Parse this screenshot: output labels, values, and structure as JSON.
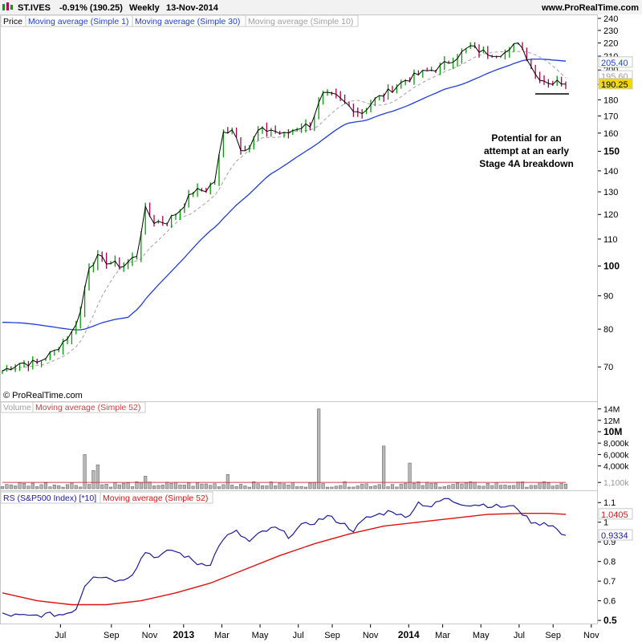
{
  "header": {
    "symbol": "ST.IVES",
    "change": "-0.91% (190.25)",
    "period": "Weekly",
    "date": "13-Nov-2014",
    "site": "www.ProRealTime.com"
  },
  "watermark": "© ProRealTime.com",
  "annotation": [
    "Potential for an",
    "attempt at an early",
    "Stage 4A breakdown"
  ],
  "colors": {
    "up": "#00a000",
    "down": "#b0004a",
    "ma1": "#000000",
    "ma30": "#1f3fd8",
    "ma10": "#a0a0a0",
    "volume_bar": "#b8b8b8",
    "vol_ma": "#d04040",
    "rs": "#1a1a9a",
    "rs_ma": "#e01010",
    "last_price_bg": "#f0d800"
  },
  "chart_data": [
    {
      "type": "line",
      "panel": "price",
      "scale": "log",
      "ylim": [
        62,
        242
      ],
      "yticks": [
        70,
        80,
        90,
        100,
        110,
        120,
        130,
        140,
        150,
        160,
        170,
        180,
        190,
        200,
        210,
        220,
        230,
        240
      ],
      "ytick_bold": [
        100,
        150
      ],
      "legend": [
        "Price",
        "Moving average (Simple 1)",
        "Moving average (Simple 30)",
        "Moving average (Simple 10)"
      ],
      "x_labels": [
        "Jul",
        "Sep",
        "Nov",
        "2013",
        "Mar",
        "May",
        "Jul",
        "Sep",
        "Nov",
        "2014",
        "Mar",
        "May",
        "Jul",
        "Sep",
        "Nov"
      ],
      "x_bold": [
        "2013",
        "2014"
      ],
      "price_knots": [
        [
          0,
          69
        ],
        [
          4,
          71
        ],
        [
          8,
          71
        ],
        [
          12,
          74
        ],
        [
          16,
          79
        ],
        [
          18,
          85
        ],
        [
          20,
          100
        ],
        [
          22,
          103
        ],
        [
          25,
          101
        ],
        [
          28,
          100
        ],
        [
          31,
          104
        ],
        [
          33,
          122
        ],
        [
          35,
          117
        ],
        [
          38,
          117
        ],
        [
          41,
          122
        ],
        [
          44,
          130
        ],
        [
          47,
          131
        ],
        [
          49,
          135
        ],
        [
          51,
          160
        ],
        [
          53,
          163
        ],
        [
          55,
          152
        ],
        [
          57,
          152
        ],
        [
          59,
          161
        ],
        [
          62,
          162
        ],
        [
          65,
          159
        ],
        [
          68,
          163
        ],
        [
          71,
          165
        ],
        [
          74,
          183
        ],
        [
          77,
          182
        ],
        [
          80,
          176
        ],
        [
          83,
          172
        ],
        [
          86,
          180
        ],
        [
          89,
          185
        ],
        [
          93,
          193
        ],
        [
          97,
          198
        ],
        [
          101,
          202
        ],
        [
          105,
          210
        ],
        [
          108,
          217
        ],
        [
          111,
          213
        ],
        [
          114,
          212
        ],
        [
          117,
          213
        ],
        [
          119,
          222
        ],
        [
          121,
          210
        ],
        [
          123,
          197
        ],
        [
          125,
          193
        ],
        [
          127,
          191
        ],
        [
          129,
          192
        ],
        [
          130,
          190.25
        ]
      ],
      "ma30_labels": [
        "205.40",
        "195.60",
        "190.25"
      ],
      "support_level": 183.5
    },
    {
      "type": "bar",
      "panel": "volume",
      "legend": [
        "Volume",
        "Moving average (Simple 52)"
      ],
      "yticks_label": [
        "14M",
        "12M",
        "10M",
        "8,000k",
        "6,000k",
        "4,000k",
        "1,100k"
      ],
      "ytick_values": [
        14000,
        12000,
        10000,
        8000,
        6000,
        4000,
        1100
      ],
      "ylim": [
        0,
        14500
      ],
      "ma_value": 1100,
      "spikes": [
        [
          19,
          6000
        ],
        [
          21,
          3200
        ],
        [
          22,
          4200
        ],
        [
          73,
          14000
        ],
        [
          88,
          7500
        ],
        [
          94,
          4500
        ],
        [
          52,
          2500
        ],
        [
          33,
          2200
        ]
      ],
      "base_volume": 900
    },
    {
      "type": "line",
      "panel": "rs",
      "legend": [
        "RS (S&P500 Index) [*10]",
        "Moving average (Simple 52)"
      ],
      "ylim": [
        0.48,
        1.15
      ],
      "yticks": [
        0.5,
        0.6,
        0.7,
        0.8,
        0.9,
        1.0,
        1.1
      ],
      "ytick_labels": [
        "0.5",
        "0.6",
        "0.7",
        "0.8",
        "0.9",
        "1",
        "1.1"
      ],
      "value_labels": [
        "1.0405",
        "0.9334"
      ],
      "rs_knots": [
        [
          0,
          0.53
        ],
        [
          6,
          0.52
        ],
        [
          10,
          0.53
        ],
        [
          14,
          0.53
        ],
        [
          17,
          0.56
        ],
        [
          19,
          0.68
        ],
        [
          21,
          0.73
        ],
        [
          24,
          0.72
        ],
        [
          27,
          0.7
        ],
        [
          30,
          0.74
        ],
        [
          33,
          0.85
        ],
        [
          36,
          0.82
        ],
        [
          39,
          0.86
        ],
        [
          42,
          0.83
        ],
        [
          45,
          0.79
        ],
        [
          48,
          0.79
        ],
        [
          51,
          0.92
        ],
        [
          54,
          0.95
        ],
        [
          57,
          0.9
        ],
        [
          60,
          0.95
        ],
        [
          63,
          0.97
        ],
        [
          66,
          0.93
        ],
        [
          69,
          0.98
        ],
        [
          72,
          1.0
        ],
        [
          75,
          1.03
        ],
        [
          78,
          1.0
        ],
        [
          81,
          0.96
        ],
        [
          84,
          1.02
        ],
        [
          87,
          1.04
        ],
        [
          90,
          1.06
        ],
        [
          93,
          1.02
        ],
        [
          96,
          1.1
        ],
        [
          99,
          1.08
        ],
        [
          102,
          1.12
        ],
        [
          105,
          1.1
        ],
        [
          108,
          1.09
        ],
        [
          111,
          1.09
        ],
        [
          114,
          1.08
        ],
        [
          117,
          1.08
        ],
        [
          119,
          1.07
        ],
        [
          121,
          1.02
        ],
        [
          123,
          0.99
        ],
        [
          125,
          1.0
        ],
        [
          127,
          0.98
        ],
        [
          129,
          0.94
        ],
        [
          130,
          0.933
        ]
      ],
      "rsma_knots": [
        [
          0,
          0.64
        ],
        [
          8,
          0.6
        ],
        [
          16,
          0.58
        ],
        [
          24,
          0.58
        ],
        [
          32,
          0.6
        ],
        [
          40,
          0.64
        ],
        [
          48,
          0.69
        ],
        [
          56,
          0.76
        ],
        [
          64,
          0.83
        ],
        [
          72,
          0.89
        ],
        [
          80,
          0.94
        ],
        [
          88,
          0.98
        ],
        [
          96,
          1.0
        ],
        [
          104,
          1.02
        ],
        [
          112,
          1.04
        ],
        [
          120,
          1.045
        ],
        [
          126,
          1.045
        ],
        [
          130,
          1.04
        ]
      ]
    }
  ]
}
